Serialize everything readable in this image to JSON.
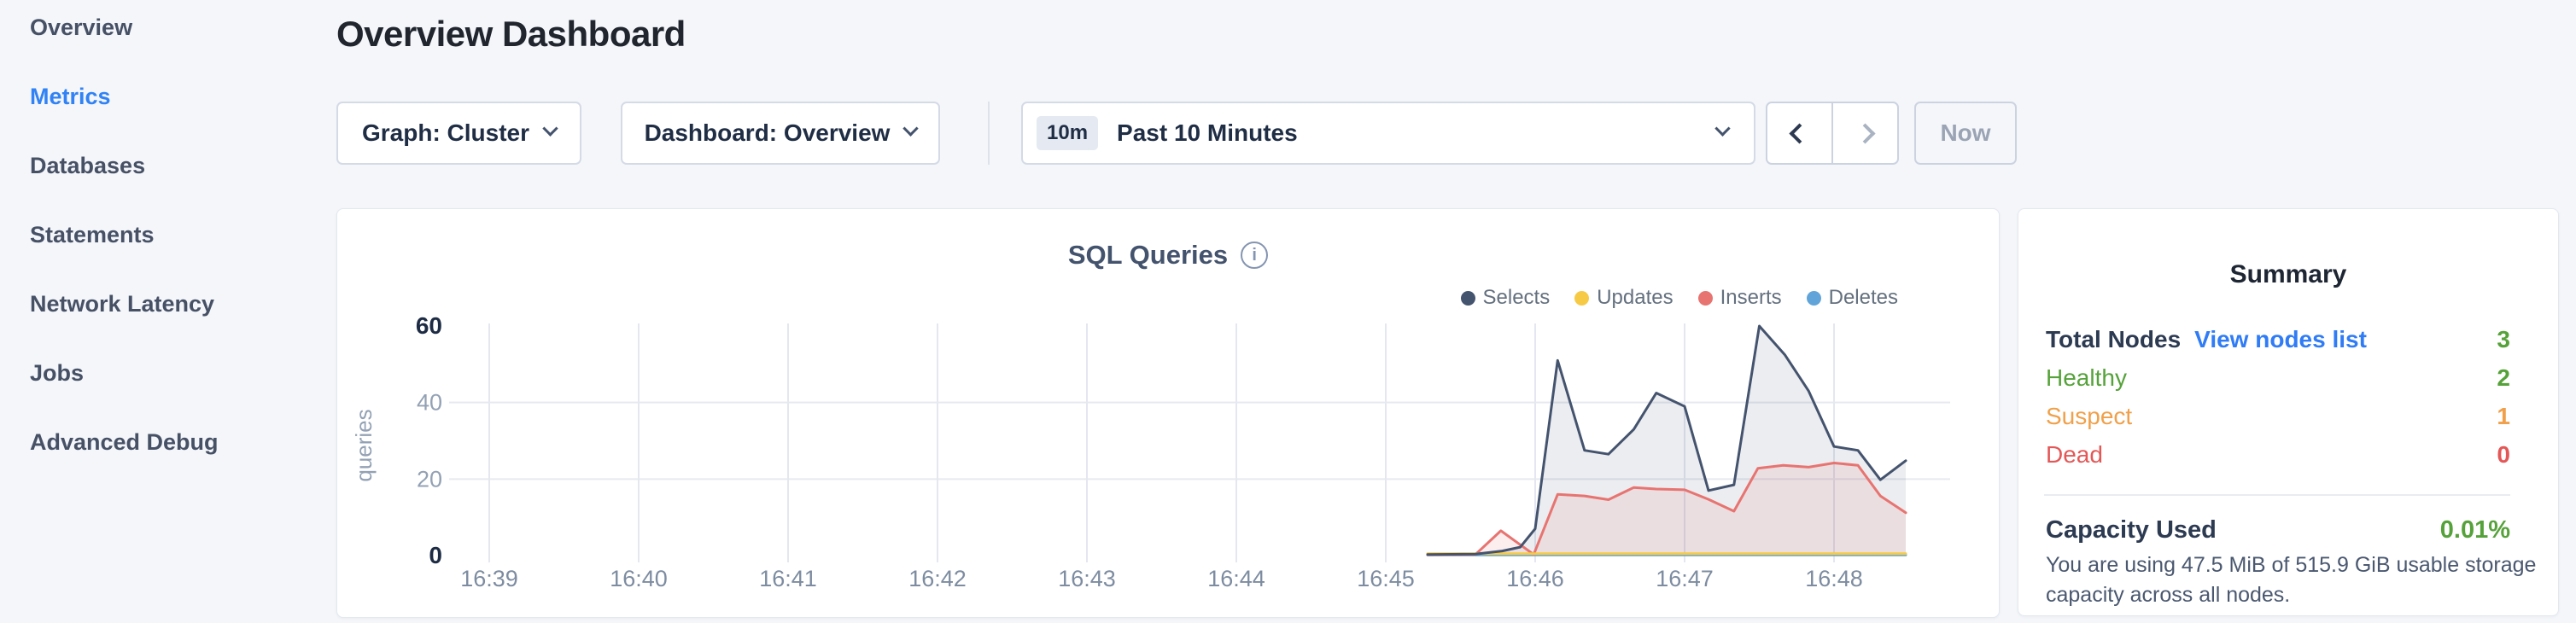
{
  "sidebar": {
    "items": [
      {
        "label": "Overview",
        "active": false
      },
      {
        "label": "Metrics",
        "active": true
      },
      {
        "label": "Databases",
        "active": false
      },
      {
        "label": "Statements",
        "active": false
      },
      {
        "label": "Network Latency",
        "active": false
      },
      {
        "label": "Jobs",
        "active": false
      },
      {
        "label": "Advanced Debug",
        "active": false
      }
    ]
  },
  "header": {
    "title": "Overview Dashboard"
  },
  "toolbar": {
    "graph_dropdown": {
      "label": "Graph: Cluster"
    },
    "dashboard_dropdown": {
      "label": "Dashboard: Overview"
    },
    "time_selector": {
      "badge": "10m",
      "label": "Past 10 Minutes"
    },
    "prev_enabled": true,
    "next_enabled": false,
    "now_button": "Now"
  },
  "chart_data": {
    "type": "area",
    "title": "SQL Queries",
    "ylabel": "queries",
    "xlabel": "",
    "x_ticks": [
      "16:39",
      "16:40",
      "16:41",
      "16:42",
      "16:43",
      "16:44",
      "16:45",
      "16:46",
      "16:47",
      "16:48"
    ],
    "y_ticks": [
      0,
      20,
      40,
      60
    ],
    "ylim": [
      0,
      60
    ],
    "grid": true,
    "legend_position": "top-right",
    "series": [
      {
        "name": "Selects",
        "color": "#44536e",
        "fill": "rgba(68,83,110,0.10)",
        "points": [
          [
            6.28,
            0.3
          ],
          [
            6.6,
            0.4
          ],
          [
            6.78,
            1.2
          ],
          [
            6.9,
            2.2
          ],
          [
            7.0,
            7
          ],
          [
            7.15,
            51
          ],
          [
            7.33,
            27.5
          ],
          [
            7.49,
            26.5
          ],
          [
            7.66,
            33
          ],
          [
            7.81,
            42.5
          ],
          [
            8.0,
            39
          ],
          [
            8.16,
            17
          ],
          [
            8.33,
            18.5
          ],
          [
            8.5,
            60
          ],
          [
            8.67,
            52.5
          ],
          [
            8.83,
            43
          ],
          [
            9.0,
            28.5
          ],
          [
            9.16,
            27.5
          ],
          [
            9.31,
            19.8
          ],
          [
            9.48,
            24.8
          ]
        ]
      },
      {
        "name": "Updates",
        "color": "#f7ca45",
        "fill": null,
        "points": [
          [
            6.28,
            0.5
          ],
          [
            7.0,
            0.5
          ],
          [
            7.5,
            0.5
          ],
          [
            8.0,
            0.5
          ],
          [
            8.5,
            0.5
          ],
          [
            9.0,
            0.5
          ],
          [
            9.48,
            0.5
          ]
        ]
      },
      {
        "name": "Inserts",
        "color": "#e77471",
        "fill": "rgba(231,116,113,0.12)",
        "points": [
          [
            6.28,
            0.2
          ],
          [
            6.6,
            0.3
          ],
          [
            6.77,
            6.5
          ],
          [
            6.99,
            0.3
          ],
          [
            7.15,
            16
          ],
          [
            7.33,
            15.6
          ],
          [
            7.49,
            14.6
          ],
          [
            7.66,
            17.8
          ],
          [
            7.81,
            17.4
          ],
          [
            8.0,
            17.2
          ],
          [
            8.16,
            14.7
          ],
          [
            8.33,
            11.6
          ],
          [
            8.49,
            22.8
          ],
          [
            8.66,
            23.6
          ],
          [
            8.83,
            23.1
          ],
          [
            9.0,
            24.2
          ],
          [
            9.16,
            23.6
          ],
          [
            9.31,
            15.6
          ],
          [
            9.48,
            11.2
          ]
        ]
      },
      {
        "name": "Deletes",
        "color": "#61a4d9",
        "fill": null,
        "points": [
          [
            6.28,
            0.15
          ],
          [
            7.0,
            0.15
          ],
          [
            7.5,
            0.15
          ],
          [
            8.0,
            0.15
          ],
          [
            8.5,
            0.15
          ],
          [
            9.0,
            0.15
          ],
          [
            9.48,
            0.15
          ]
        ]
      }
    ]
  },
  "summary": {
    "title": "Summary",
    "rows": [
      {
        "label": "Total Nodes",
        "label_style": "default",
        "label_bold": true,
        "link": "View nodes list",
        "value": "3",
        "value_style": "green"
      },
      {
        "label": "Healthy",
        "label_style": "green",
        "label_bold": false,
        "link": null,
        "value": "2",
        "value_style": "green"
      },
      {
        "label": "Suspect",
        "label_style": "orange",
        "label_bold": false,
        "link": null,
        "value": "1",
        "value_style": "orange"
      },
      {
        "label": "Dead",
        "label_style": "red",
        "label_bold": false,
        "link": null,
        "value": "0",
        "value_style": "red"
      }
    ],
    "capacity": {
      "label": "Capacity Used",
      "value": "0.01%",
      "value_style": "green",
      "description": "You are using 47.5 MiB of 515.9 GiB usable storage capacity across all nodes."
    }
  },
  "colors": {
    "default": "#2c3a52",
    "green": "#56a23a",
    "orange": "#f0a04a",
    "red": "#e45757",
    "link": "#2f7cf6",
    "accent": "#3082f5",
    "axis_strong": "#1d2c44",
    "axis_weak": "#93a1b4",
    "axis_x": "#7d8ca1",
    "grid": "#e4e7f0"
  }
}
